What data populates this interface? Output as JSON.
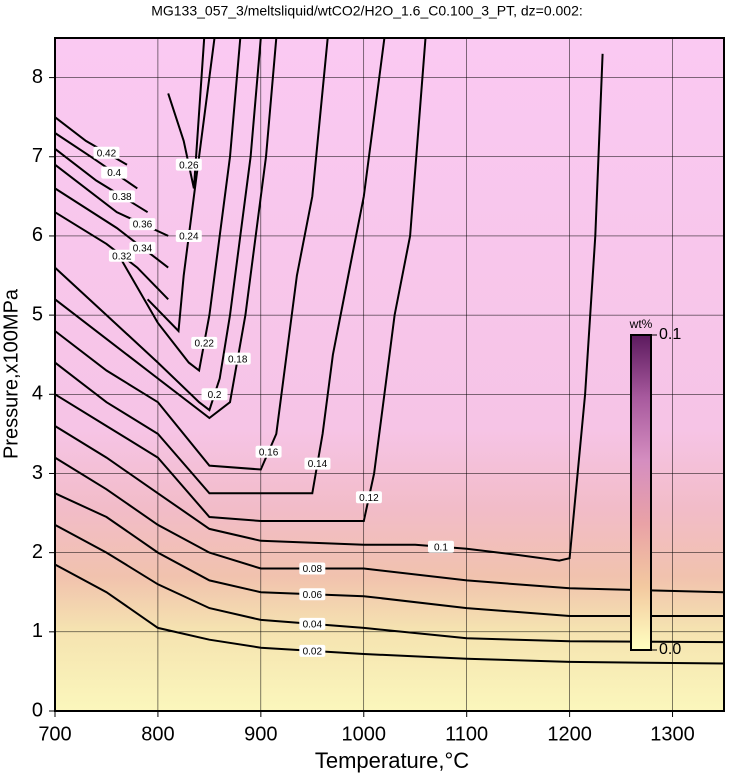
{
  "chart_data": {
    "type": "contour",
    "title": "MG133_057_3/meltsliquid/wtCO2/H2O_1.6_C0.100_3_PT, dz=0.002:",
    "x_label": "Temperature,°C",
    "y_label": "Pressure,x100MPa",
    "xlim": [
      700,
      1350
    ],
    "ylim": [
      0,
      8.5
    ],
    "xticks": [
      700,
      800,
      900,
      1000,
      1100,
      1200,
      1300
    ],
    "yticks": [
      0,
      1,
      2,
      3,
      4,
      5,
      6,
      7,
      8
    ],
    "grid": true,
    "line_color": "#000000",
    "contours": [
      {
        "level": 0.02,
        "x": [
          700,
          750,
          800,
          850,
          900,
          1000,
          1100,
          1200,
          1350
        ],
        "y": [
          1.85,
          1.5,
          1.05,
          0.9,
          0.8,
          0.72,
          0.66,
          0.62,
          0.6
        ]
      },
      {
        "level": 0.04,
        "x": [
          700,
          750,
          800,
          850,
          900,
          1000,
          1100,
          1200,
          1350
        ],
        "y": [
          2.35,
          2.0,
          1.6,
          1.3,
          1.15,
          1.05,
          0.92,
          0.88,
          0.87
        ]
      },
      {
        "level": 0.06,
        "x": [
          700,
          750,
          800,
          850,
          900,
          1000,
          1100,
          1200,
          1350
        ],
        "y": [
          2.75,
          2.45,
          2.0,
          1.65,
          1.5,
          1.45,
          1.3,
          1.2,
          1.2
        ]
      },
      {
        "level": 0.08,
        "x": [
          700,
          750,
          800,
          850,
          900,
          1000,
          1100,
          1200,
          1350
        ],
        "y": [
          3.2,
          2.8,
          2.35,
          2.0,
          1.8,
          1.8,
          1.65,
          1.55,
          1.5
        ]
      },
      {
        "level": 0.1,
        "x": [
          700,
          750,
          800,
          850,
          900,
          1000,
          1050,
          1100,
          1150,
          1190,
          1200,
          1215,
          1225,
          1232
        ],
        "y": [
          3.6,
          3.2,
          2.75,
          2.3,
          2.15,
          2.1,
          2.1,
          2.05,
          1.97,
          1.9,
          1.93,
          4.0,
          6.0,
          8.3
        ]
      },
      {
        "level": 0.12,
        "x": [
          700,
          750,
          800,
          850,
          900,
          1000,
          1010,
          1020,
          1030,
          1045,
          1060
        ],
        "y": [
          4.0,
          3.6,
          3.2,
          2.45,
          2.4,
          2.4,
          3.0,
          4.0,
          5.0,
          6.0,
          8.5
        ]
      },
      {
        "level": 0.14,
        "x": [
          700,
          750,
          800,
          850,
          950,
          960,
          970,
          985,
          1000,
          1020
        ],
        "y": [
          4.4,
          3.9,
          3.5,
          2.75,
          2.75,
          3.5,
          4.5,
          5.5,
          6.5,
          8.5
        ]
      },
      {
        "level": 0.16,
        "x": [
          700,
          750,
          800,
          850,
          900,
          915,
          925,
          935,
          950,
          965
        ],
        "y": [
          4.8,
          4.3,
          3.9,
          3.1,
          3.05,
          3.5,
          4.5,
          5.5,
          6.5,
          8.5
        ]
      },
      {
        "level": 0.18,
        "x": [
          700,
          750,
          800,
          850,
          870,
          885,
          895,
          905,
          915
        ],
        "y": [
          5.2,
          4.7,
          4.2,
          3.7,
          3.9,
          5.0,
          6.0,
          7.0,
          8.5
        ]
      },
      {
        "level": 0.2,
        "x": [
          700,
          750,
          800,
          840,
          850,
          860,
          870,
          880,
          890,
          900
        ],
        "y": [
          5.6,
          5.0,
          4.4,
          3.9,
          3.8,
          4.2,
          5.0,
          6.0,
          7.0,
          8.5
        ]
      },
      {
        "level": 0.22,
        "x": [
          760,
          800,
          830,
          840,
          850,
          860,
          870,
          880
        ],
        "y": [
          5.8,
          4.9,
          4.4,
          4.3,
          5.0,
          6.0,
          7.0,
          8.5
        ]
      },
      {
        "level": 0.24,
        "x": [
          790,
          820,
          825,
          835,
          845,
          855
        ],
        "y": [
          5.2,
          4.8,
          5.5,
          6.5,
          7.5,
          8.5
        ]
      },
      {
        "level": 0.26,
        "x": [
          810,
          825,
          835,
          845
        ],
        "y": [
          7.8,
          7.2,
          6.6,
          8.5
        ]
      },
      {
        "level": 0.32,
        "x": [
          700,
          750,
          780,
          810
        ],
        "y": [
          6.3,
          5.9,
          5.6,
          5.2
        ]
      },
      {
        "level": 0.34,
        "x": [
          700,
          760,
          810
        ],
        "y": [
          6.6,
          6.1,
          5.6
        ]
      },
      {
        "level": 0.36,
        "x": [
          700,
          760,
          810
        ],
        "y": [
          6.9,
          6.3,
          6.0
        ]
      },
      {
        "level": 0.38,
        "x": [
          700,
          740,
          790
        ],
        "y": [
          7.1,
          6.7,
          6.3
        ]
      },
      {
        "level": 0.4,
        "x": [
          700,
          735,
          780
        ],
        "y": [
          7.3,
          7.0,
          6.6
        ]
      },
      {
        "level": 0.42,
        "x": [
          700,
          730,
          770
        ],
        "y": [
          7.5,
          7.2,
          6.9
        ]
      }
    ],
    "colorbar": {
      "title": "wt%",
      "lim": [
        0,
        0.1
      ],
      "ticks": [
        {
          "value": 0,
          "label": "0.0"
        },
        0.1
      ],
      "colors": [
        "#ffffc0",
        "#f3c9a0",
        "#e9a2a6",
        "#d58ec0",
        "#a85a9e",
        "#5c1a5e"
      ]
    }
  }
}
